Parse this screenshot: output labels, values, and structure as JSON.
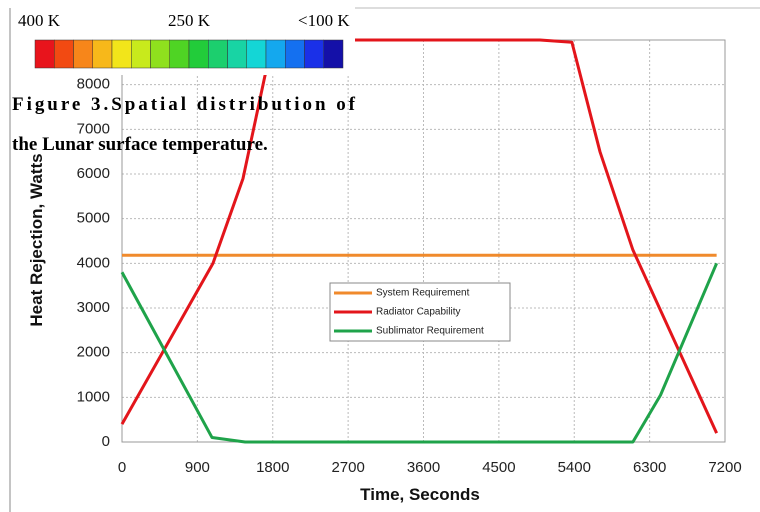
{
  "colorbar": {
    "labels": [
      "400 K",
      "250 K",
      "<100 K"
    ],
    "colors": [
      "#e8141c",
      "#f24a12",
      "#f7861a",
      "#f7b81a",
      "#f2e51a",
      "#c8ea1c",
      "#8fe01e",
      "#4fd424",
      "#22cc3a",
      "#1ccf6e",
      "#18d4a4",
      "#14d6d6",
      "#14a8ee",
      "#1470f0",
      "#1a30e8",
      "#1410a8"
    ]
  },
  "caption": [
    "Figure 3.Spatial distribution of",
    "the Lunar surface temperature."
  ],
  "chart_data": {
    "type": "line",
    "x_label": "Time, Seconds",
    "y_label": "Heat Rejection, Watts",
    "xlim": [
      0,
      7200
    ],
    "xticks": [
      0,
      900,
      1800,
      2700,
      3600,
      4500,
      5400,
      6300,
      7200
    ],
    "ylim": [
      0,
      9000
    ],
    "yticks": [
      0,
      1000,
      2000,
      3000,
      4000,
      5000,
      6000,
      7000,
      8000
    ],
    "grid": true,
    "legend": "center",
    "series": [
      {
        "name": "System Requirement",
        "color": "#f08a2c",
        "x": [
          0,
          7100
        ],
        "values": [
          4180,
          4180
        ]
      },
      {
        "name": "Radiator Capability",
        "color": "#e3151b",
        "x": [
          0,
          1086,
          1445,
          1707,
          1827,
          4990,
          5372,
          5707,
          6100,
          7100
        ],
        "values": [
          400,
          4000,
          5900,
          8200,
          9000,
          9000,
          8950,
          6500,
          4300,
          200
        ]
      },
      {
        "name": "Sublimator Requirement",
        "color": "#1fa34a",
        "x": [
          0,
          1075,
          1470,
          6100,
          6430,
          7100
        ],
        "values": [
          3800,
          100,
          0,
          0,
          1050,
          4000
        ]
      }
    ]
  }
}
